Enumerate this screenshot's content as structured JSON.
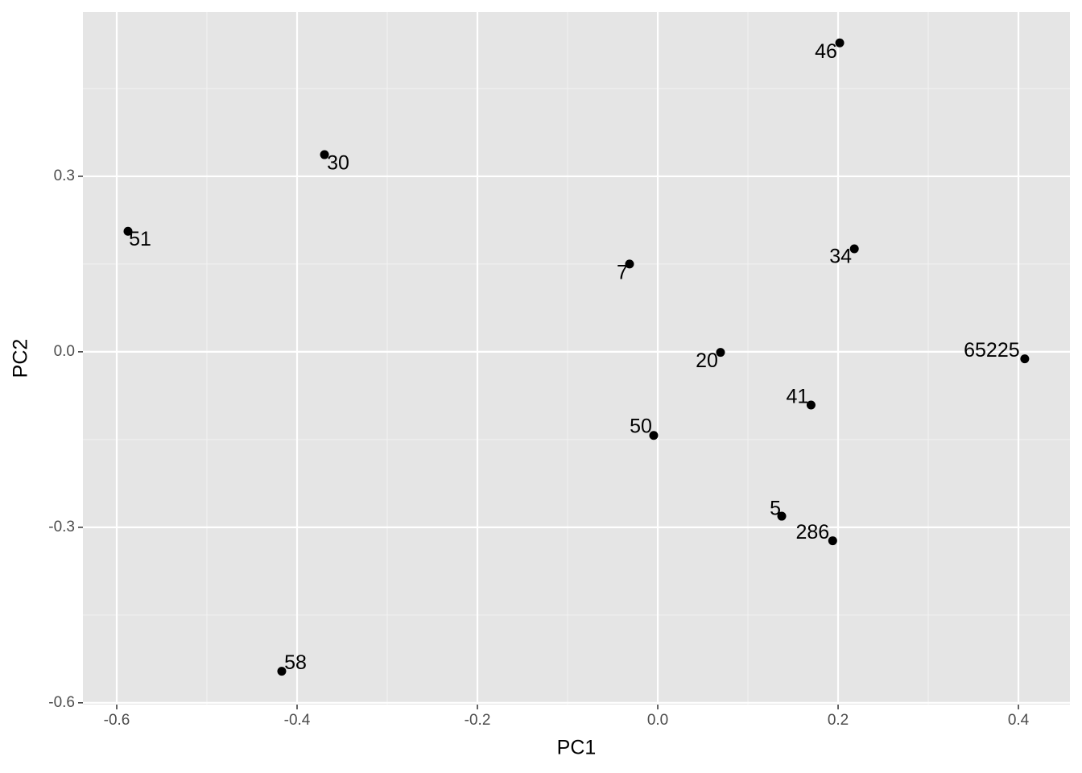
{
  "chart_data": {
    "type": "scatter",
    "xlabel": "PC1",
    "ylabel": "PC2",
    "labels": [
      "46",
      "30",
      "51",
      "7",
      "34",
      "65225",
      "20",
      "41",
      "50",
      "5",
      "286",
      "58"
    ],
    "x": [
      0.2018,
      -0.3696,
      -0.5875,
      -0.0313,
      0.218,
      0.407,
      0.0696,
      0.17,
      -0.0045,
      0.1375,
      0.194,
      -0.417
    ],
    "values": [
      0.528,
      0.337,
      0.206,
      0.15,
      0.176,
      -0.012,
      -0.001,
      -0.091,
      -0.143,
      -0.281,
      -0.323,
      -0.546
    ],
    "color": "#000000",
    "xlim": [
      -0.6375,
      0.4571
    ],
    "ylim": [
      -0.603,
      0.5807
    ],
    "xticks": [
      -0.6,
      -0.4,
      -0.2,
      {
        "value": 0,
        "label": "0.0"
      },
      0.2,
      0.4
    ],
    "yticks": [
      -0.6,
      -0.3,
      {
        "value": 0,
        "label": "0.0"
      },
      0.3
    ],
    "grid": true
  }
}
